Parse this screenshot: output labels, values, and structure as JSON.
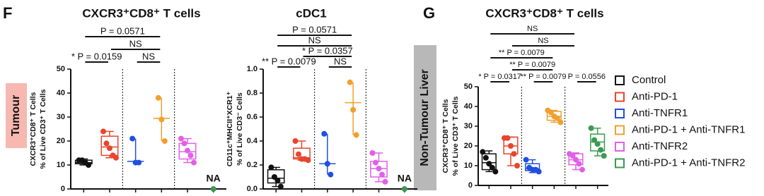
{
  "panels": [
    "F",
    "G"
  ],
  "side_labels": [
    "Tumour",
    "Non-Tumour Liver"
  ],
  "legend": [
    {
      "name": "Control",
      "color": "#111111"
    },
    {
      "name": "Anti-PD-1",
      "color": "#e8452c"
    },
    {
      "name": "Anti-TNFR1",
      "color": "#1f4fe0"
    },
    {
      "name": "Anti-PD-1 + Anti-TNFR1",
      "color": "#f0a030"
    },
    {
      "name": "Anti-TNFR2",
      "color": "#e060e8"
    },
    {
      "name": "Anti-PD-1 + Anti-TNFR2",
      "color": "#3a9a50"
    }
  ],
  "chart_data": [
    {
      "type": "box",
      "title": "CXCR3⁺CD8⁺ T cells",
      "ylabel": [
        "CXCR3⁺CD8⁺ T Cells",
        "% of Live CD3⁺ T Cells"
      ],
      "ylim": [
        0,
        50
      ],
      "yticks": [
        0,
        10,
        20,
        30,
        40,
        50
      ],
      "series": [
        {
          "values": [
            12,
            12,
            11,
            10
          ],
          "box": {
            "min": 10,
            "q1": 10.5,
            "median": 11,
            "q3": 12,
            "max": 12.5
          }
        },
        {
          "values": [
            24,
            19,
            17,
            14,
            13
          ],
          "box": {
            "min": 13,
            "q1": 14,
            "median": 17.5,
            "q3": 22,
            "max": 24
          }
        },
        {
          "values": [
            21,
            11,
            11
          ],
          "box": {
            "min": 11,
            "median": 11.5,
            "max": 21
          }
        },
        {
          "values": [
            38,
            29,
            20
          ],
          "box": {
            "min": 20,
            "median": 29.5,
            "max": 38
          }
        },
        {
          "values": [
            21,
            19,
            16,
            14,
            11
          ],
          "box": {
            "min": 11,
            "q1": 12.5,
            "median": 15.5,
            "q3": 19,
            "max": 21
          }
        },
        {
          "values": [
            0
          ],
          "label": "NA"
        }
      ],
      "brackets": [
        [
          {
            "from": 0,
            "to": 3,
            "label": "P = 0.0571"
          }
        ],
        [
          {
            "from": 1,
            "to": 3,
            "label": "NS"
          }
        ],
        [
          {
            "from": 0,
            "to": 1,
            "label": "* P = 0.0159"
          },
          {
            "from": 2,
            "to": 3,
            "label": "NS"
          }
        ]
      ]
    },
    {
      "type": "box",
      "title": "cDC1",
      "ylabel": [
        "CD11c⁺MHCII⁺XCR1⁺",
        "% of Live CD3⁻ Cells"
      ],
      "ylim": [
        0,
        1
      ],
      "yticks": [
        {
          "value": 0,
          "label": "0.0"
        },
        0.2,
        0.4,
        0.6,
        0.8,
        {
          "value": 1,
          "label": "1.0"
        }
      ],
      "series": [
        {
          "values": [
            0.18,
            0.1,
            0.07,
            0.02
          ],
          "box": {
            "min": 0.02,
            "q1": 0.05,
            "median": 0.09,
            "q3": 0.16,
            "max": 0.18
          }
        },
        {
          "values": [
            0.4,
            0.29,
            0.25,
            0.25,
            0.24
          ],
          "box": {
            "min": 0.24,
            "q1": 0.25,
            "median": 0.26,
            "q3": 0.34,
            "max": 0.4
          }
        },
        {
          "values": [
            0.46,
            0.21,
            0.12
          ],
          "box": {
            "min": 0.12,
            "median": 0.21,
            "max": 0.46
          }
        },
        {
          "values": [
            0.89,
            0.66,
            0.45
          ],
          "box": {
            "min": 0.45,
            "median": 0.72,
            "max": 0.89
          }
        },
        {
          "values": [
            0.3,
            0.22,
            0.17,
            0.12,
            0.06
          ],
          "box": {
            "min": 0.06,
            "q1": 0.1,
            "median": 0.17,
            "q3": 0.23,
            "max": 0.3
          }
        },
        {
          "values": [
            0
          ],
          "label": "NA"
        }
      ],
      "brackets": [
        [
          {
            "from": 0,
            "to": 3,
            "label": "P = 0.0571"
          }
        ],
        [
          {
            "from": 0,
            "to": 3,
            "label": "NS"
          }
        ],
        [
          {
            "from": 1,
            "to": 3,
            "label": "* P = 0.0357"
          }
        ],
        [
          {
            "from": 0,
            "to": 1,
            "label": "** P = 0.0079"
          },
          {
            "from": 2,
            "to": 3,
            "label": "NS"
          }
        ]
      ]
    },
    {
      "type": "box",
      "title": "CXCR3⁺CD8⁺ T cells",
      "ylabel": [
        "CXCR3⁺CD8⁺ T Cells",
        "% of Live CD3⁺ T Cells"
      ],
      "ylim": [
        0,
        50
      ],
      "yticks": [
        0,
        10,
        20,
        30,
        40,
        50
      ],
      "series": [
        {
          "values": [
            17,
            14,
            11,
            9,
            7
          ],
          "box": {
            "min": 7,
            "q1": 8,
            "median": 11.5,
            "q3": 16,
            "max": 17.5
          }
        },
        {
          "values": [
            24,
            24,
            20,
            16,
            10
          ],
          "box": {
            "min": 10,
            "q1": 16,
            "median": 20,
            "q3": 24.5,
            "max": 24.5
          }
        },
        {
          "values": [
            13,
            9,
            8,
            8,
            7
          ],
          "box": {
            "min": 6.5,
            "q1": 7.5,
            "median": 8.5,
            "q3": 11,
            "max": 13
          }
        },
        {
          "values": [
            38,
            37,
            35,
            34,
            32
          ],
          "box": {
            "min": 32,
            "q1": 33,
            "median": 35,
            "q3": 37.5,
            "max": 38
          }
        },
        {
          "values": [
            16,
            15,
            13,
            11,
            8
          ],
          "box": {
            "min": 8,
            "q1": 10.5,
            "median": 13,
            "q3": 16,
            "max": 16.5
          }
        },
        {
          "values": [
            29,
            23,
            21,
            18,
            15
          ],
          "box": {
            "min": 15,
            "q1": 17.5,
            "median": 22,
            "q3": 26,
            "max": 29
          }
        }
      ],
      "brackets": [
        [
          {
            "from": 0,
            "to": 4,
            "label": "NS"
          }
        ],
        [
          {
            "from": 1,
            "to": 4,
            "label": "NS"
          }
        ],
        [
          {
            "from": 0,
            "to": 3,
            "label": "** P = 0.0079"
          }
        ],
        [
          {
            "from": 1,
            "to": 3,
            "label": "** P = 0.0079"
          }
        ],
        [
          {
            "from": 0,
            "to": 1,
            "label": "* P = 0.0317"
          },
          {
            "from": 2,
            "to": 3,
            "label": "** P = 0.0079"
          },
          {
            "from": 4,
            "to": 5,
            "label": "P = 0.0556"
          }
        ]
      ]
    }
  ]
}
